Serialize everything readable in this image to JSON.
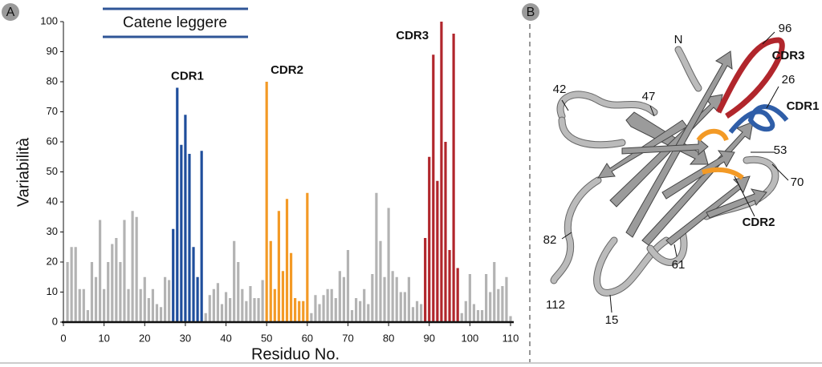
{
  "panel_a_label": "A",
  "chart_data": {
    "type": "bar",
    "title": "Catene leggere",
    "x_label": "Residuo No.",
    "y_label": "Variabilità",
    "xlim": [
      0,
      110
    ],
    "xticks": [
      0,
      10,
      20,
      30,
      40,
      50,
      60,
      70,
      80,
      90,
      100,
      110
    ],
    "ylim": [
      0,
      100
    ],
    "yticks": [
      0,
      10,
      20,
      30,
      40,
      50,
      60,
      70,
      80,
      90,
      100
    ],
    "series": [
      {
        "color": "#b3b3b3",
        "x": [
          1,
          2,
          3,
          4,
          5,
          6,
          7,
          8,
          9,
          10,
          11,
          12,
          13,
          14,
          15,
          16,
          17,
          18,
          19,
          20,
          21,
          22,
          23,
          24,
          25,
          26,
          35,
          36,
          37,
          38,
          39,
          40,
          41,
          42,
          43,
          44,
          45,
          46,
          47,
          48,
          49,
          61,
          62,
          63,
          64,
          65,
          66,
          67,
          68,
          69,
          70,
          71,
          72,
          73,
          74,
          75,
          76,
          77,
          78,
          79,
          80,
          81,
          82,
          83,
          84,
          85,
          86,
          87,
          88,
          98,
          99,
          100,
          101,
          102,
          103,
          104,
          105,
          106,
          107,
          108,
          109,
          110
        ],
        "values": [
          20,
          25,
          25,
          11,
          11,
          4,
          20,
          15,
          34,
          11,
          20,
          26,
          28,
          20,
          34,
          11,
          37,
          35,
          11,
          15,
          8,
          11,
          6,
          5,
          15,
          14,
          3,
          9,
          11,
          13,
          6,
          10,
          8,
          27,
          20,
          11,
          7,
          12,
          8,
          8,
          14,
          3,
          9,
          6,
          9,
          11,
          11,
          8,
          17,
          15,
          24,
          4,
          8,
          7,
          11,
          6,
          16,
          43,
          27,
          15,
          38,
          17,
          15,
          10,
          10,
          15,
          5,
          7,
          6,
          3,
          7,
          16,
          6,
          4,
          4,
          16,
          10,
          20,
          11,
          12,
          15,
          2
        ]
      },
      {
        "name": "CDR1",
        "color": "#1f4e9c",
        "x": [
          27,
          28,
          29,
          30,
          31,
          32,
          33,
          34
        ],
        "values": [
          31,
          78,
          59,
          69,
          56,
          25,
          15,
          57
        ]
      },
      {
        "name": "CDR2",
        "color": "#f39a26",
        "x": [
          50,
          51,
          52,
          53,
          54,
          55,
          56,
          57,
          58,
          59,
          60
        ],
        "values": [
          80,
          27,
          11,
          37,
          17,
          41,
          23,
          8,
          7,
          7,
          43
        ]
      },
      {
        "name": "CDR3",
        "color": "#b1262c",
        "x": [
          89,
          90,
          91,
          92,
          93,
          94,
          95,
          96,
          97
        ],
        "values": [
          28,
          55,
          89,
          47,
          100,
          60,
          24,
          96,
          18
        ]
      }
    ]
  },
  "panel_b": {
    "label": "B",
    "labels": [
      "N",
      "96",
      "CDR3",
      "26",
      "CDR1",
      "42",
      "47",
      "53",
      "70",
      "CDR2",
      "82",
      "61",
      "112",
      "15"
    ]
  }
}
